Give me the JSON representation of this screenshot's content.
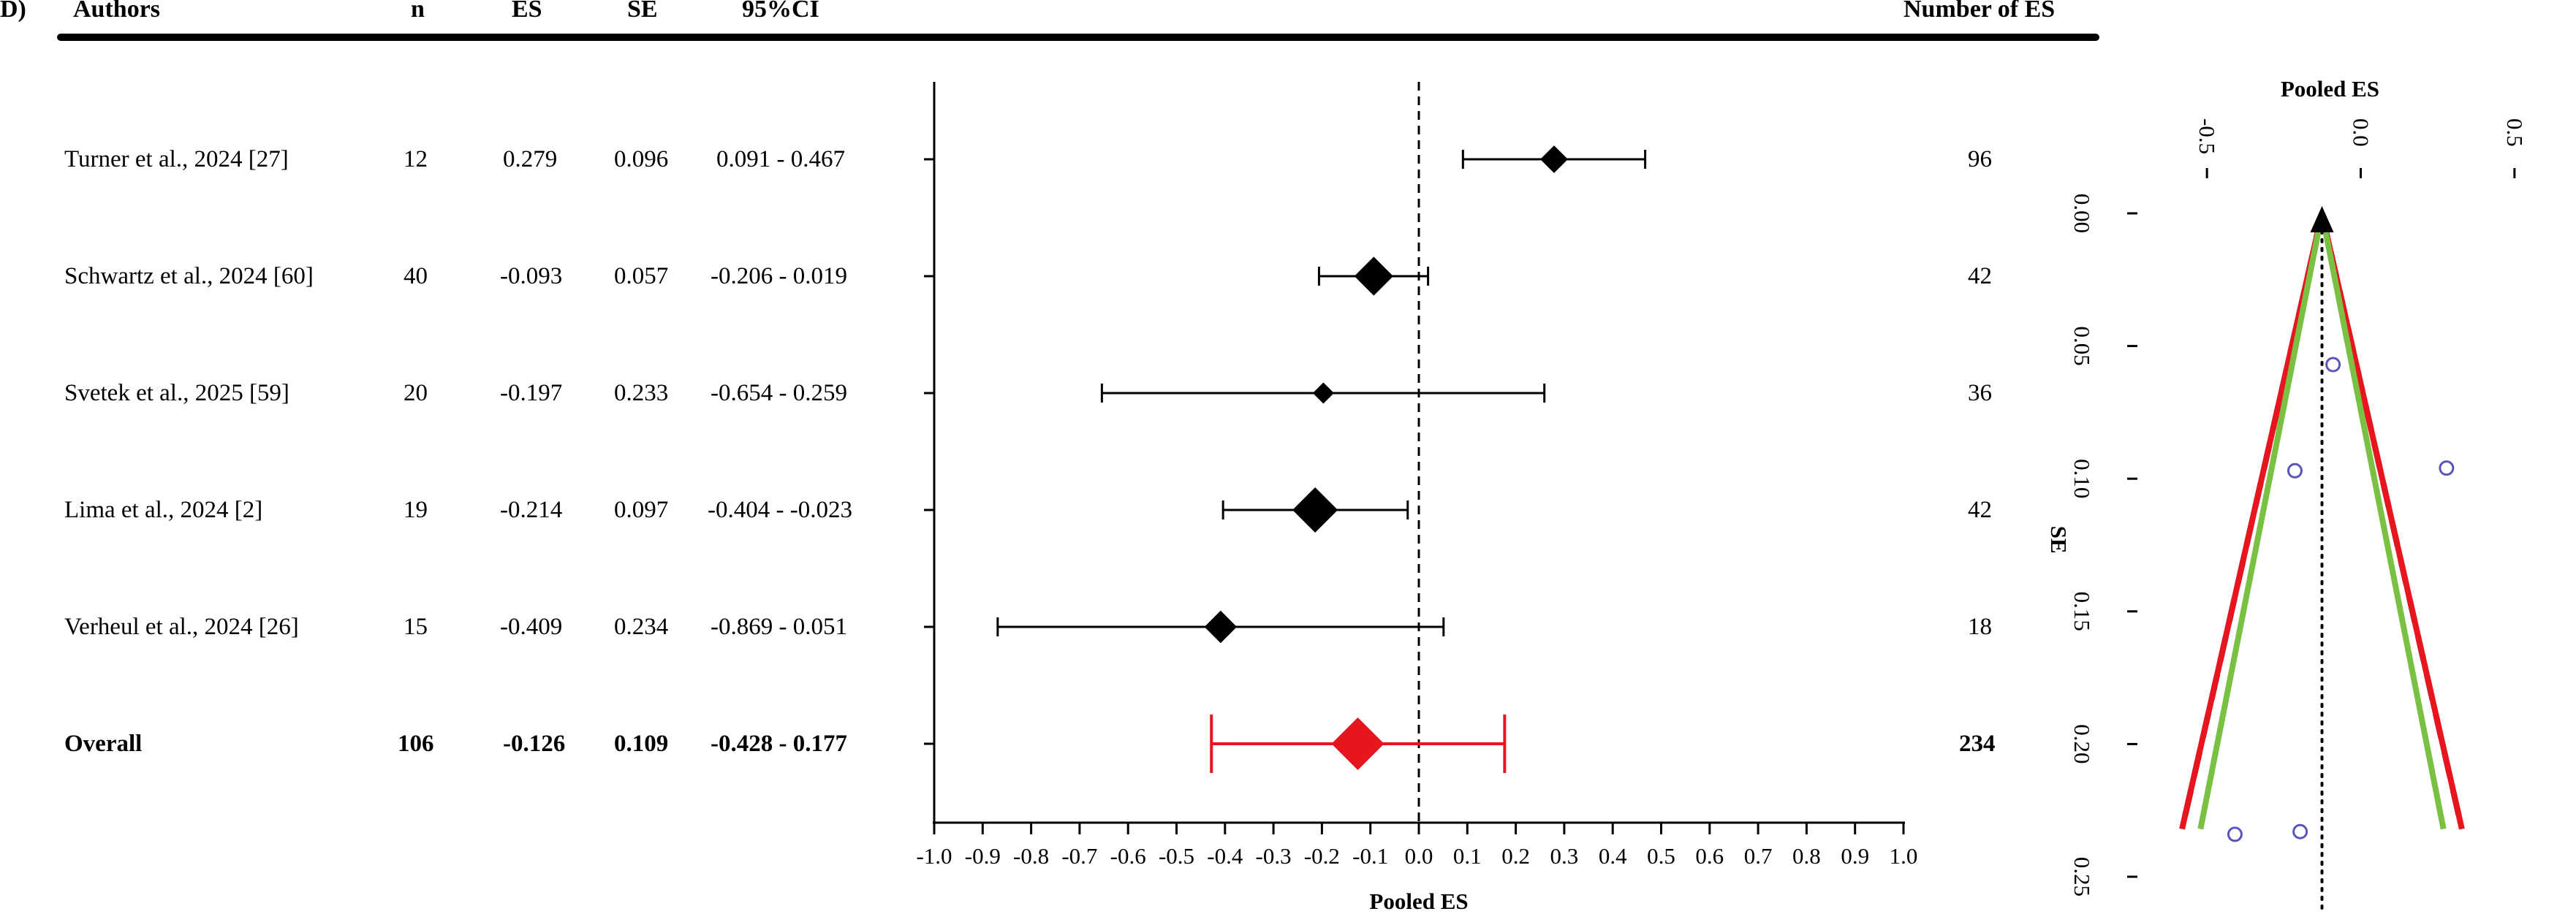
{
  "panel_label": "D)",
  "table": {
    "headers": {
      "authors": "Authors",
      "n": "n",
      "es": "ES",
      "se": "SE",
      "ci": "95%CI",
      "num_es": "Number of ES"
    },
    "rows": [
      {
        "author": "Turner et al., 2024 [27]",
        "n": "12",
        "es": "0.279",
        "se": "0.096",
        "ci": "0.091 - 0.467",
        "num_es": "96"
      },
      {
        "author": "Schwartz et al., 2024 [60]",
        "n": "40",
        "es": "-0.093",
        "se": "0.057",
        "ci": "-0.206 - 0.019",
        "num_es": "42"
      },
      {
        "author": "Svetek et al., 2025 [59]",
        "n": "20",
        "es": "-0.197",
        "se": "0.233",
        "ci": "-0.654 - 0.259",
        "num_es": "36"
      },
      {
        "author": "Lima et al., 2024 [2]",
        "n": "19",
        "es": "-0.214",
        "se": "0.097",
        "ci": "-0.404 - -0.023",
        "num_es": "42"
      },
      {
        "author": "Verheul et al., 2024 [26]",
        "n": "15",
        "es": "-0.409",
        "se": "0.234",
        "ci": "-0.869 - 0.051",
        "num_es": "18"
      }
    ],
    "overall": {
      "author": "Overall",
      "n": "106",
      "es": "-0.126",
      "se": "0.109",
      "ci": "-0.428 - 0.177",
      "num_es": "234"
    }
  },
  "chart_data": [
    {
      "type": "forest",
      "xlabel": "Pooled ES",
      "xlim": [
        -1.0,
        1.0
      ],
      "xticks": [
        "-1.0",
        "-0.9",
        "-0.8",
        "-0.7",
        "-0.6",
        "-0.5",
        "-0.4",
        "-0.3",
        "-0.2",
        "-0.1",
        "0.0",
        "0.1",
        "0.2",
        "0.3",
        "0.4",
        "0.5",
        "0.6",
        "0.7",
        "0.8",
        "0.9",
        "1.0"
      ],
      "reference_line": 0.0,
      "studies": [
        {
          "es": 0.279,
          "lower": 0.091,
          "upper": 0.467,
          "weight": 0.45
        },
        {
          "es": -0.093,
          "lower": -0.206,
          "upper": 0.019,
          "weight": 0.8
        },
        {
          "es": -0.197,
          "lower": -0.654,
          "upper": 0.259,
          "weight": 0.25
        },
        {
          "es": -0.214,
          "lower": -0.404,
          "upper": -0.023,
          "weight": 1.0
        },
        {
          "es": -0.409,
          "lower": -0.869,
          "upper": 0.051,
          "weight": 0.6
        }
      ],
      "overall": {
        "es": -0.126,
        "lower": -0.428,
        "upper": 0.177
      },
      "colors": {
        "study": "#000000",
        "overall": "#e8141e"
      }
    },
    {
      "type": "funnel",
      "xlabel": "Pooled ES",
      "ylabel": "SE",
      "xlim": [
        -0.7,
        0.7
      ],
      "ylim": [
        0.0,
        0.25
      ],
      "xticks": [
        "-0.5",
        "0.0",
        "0.5"
      ],
      "yticks": [
        "0.00",
        "0.05",
        "0.10",
        "0.15",
        "0.20",
        "0.25"
      ],
      "pooled_es": -0.126,
      "points": [
        {
          "es": -0.09,
          "se": 0.057
        },
        {
          "es": 0.279,
          "se": 0.096
        },
        {
          "es": -0.214,
          "se": 0.097
        },
        {
          "es": -0.197,
          "se": 0.233
        },
        {
          "es": -0.409,
          "se": 0.234
        }
      ],
      "pseudo_ci_se_max": 0.232,
      "ci_lines": {
        "red_half_width": 0.455,
        "green_half_width": 0.395
      },
      "colors": {
        "dashed": "#000000",
        "red": "#e8141e",
        "green": "#7ac143",
        "points": "#5a56b8"
      }
    }
  ]
}
